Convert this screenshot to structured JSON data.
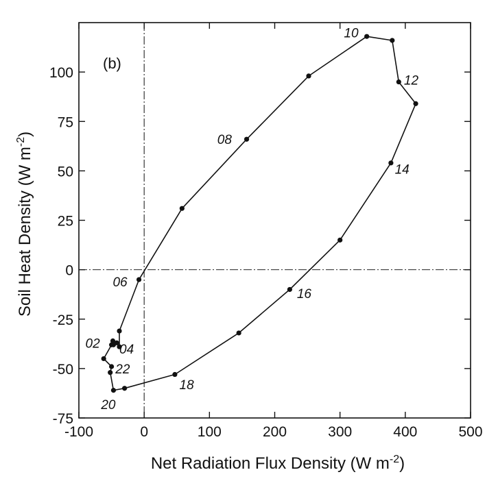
{
  "chart_data": {
    "type": "line",
    "panel_label": "(b)",
    "xlabel": "Net Radiation Flux Density (W m-2)",
    "xlabel_parts": {
      "main": "Net Radiation Flux Density (W m",
      "exp": "-2",
      "close": ")"
    },
    "ylabel": "Soil Heat Density (W m-2)",
    "ylabel_parts": {
      "main": "Soil Heat Density (W m",
      "exp": "-2",
      "close": ")"
    },
    "xlim": [
      -100,
      500
    ],
    "ylim": [
      -75,
      125
    ],
    "xticks": [
      -100,
      0,
      100,
      200,
      300,
      400,
      500
    ],
    "yticks": [
      -75,
      -50,
      -25,
      0,
      25,
      50,
      75,
      100
    ],
    "grid": false,
    "reference_lines": {
      "x": 0,
      "y": 0
    },
    "series": [
      {
        "points": [
          {
            "x": -38,
            "y": -31
          },
          {
            "x": -8,
            "y": -5
          },
          {
            "x": 58,
            "y": 31
          },
          {
            "x": 157,
            "y": 66
          },
          {
            "x": 252,
            "y": 98
          },
          {
            "x": 341,
            "y": 118
          },
          {
            "x": 380,
            "y": 116
          },
          {
            "x": 390,
            "y": 95
          },
          {
            "x": 416,
            "y": 84
          },
          {
            "x": 378,
            "y": 54
          },
          {
            "x": 300,
            "y": 15
          },
          {
            "x": 223,
            "y": -10
          },
          {
            "x": 145,
            "y": -32
          },
          {
            "x": 47,
            "y": -53
          },
          {
            "x": -30,
            "y": -60
          },
          {
            "x": -47,
            "y": -61
          },
          {
            "x": -52,
            "y": -52
          },
          {
            "x": -50,
            "y": -49
          },
          {
            "x": -62,
            "y": -45
          },
          {
            "x": -50,
            "y": -38
          },
          {
            "x": -48,
            "y": -36
          },
          {
            "x": -47,
            "y": -38
          },
          {
            "x": -42,
            "y": -37
          },
          {
            "x": -38,
            "y": -39
          },
          {
            "x": -38,
            "y": -31
          }
        ]
      }
    ],
    "annotations": [
      {
        "text": "02",
        "x": -90,
        "y": -37
      },
      {
        "text": "04",
        "x": -38,
        "y": -40
      },
      {
        "text": "06",
        "x": -48,
        "y": -6
      },
      {
        "text": "08",
        "x": 112,
        "y": 66
      },
      {
        "text": "10",
        "x": 306,
        "y": 120
      },
      {
        "text": "12",
        "x": 398,
        "y": 96
      },
      {
        "text": "14",
        "x": 384,
        "y": 51
      },
      {
        "text": "16",
        "x": 234,
        "y": -12
      },
      {
        "text": "18",
        "x": 54,
        "y": -58
      },
      {
        "text": "20",
        "x": -66,
        "y": -68
      },
      {
        "text": "22",
        "x": -44,
        "y": -50
      }
    ]
  }
}
